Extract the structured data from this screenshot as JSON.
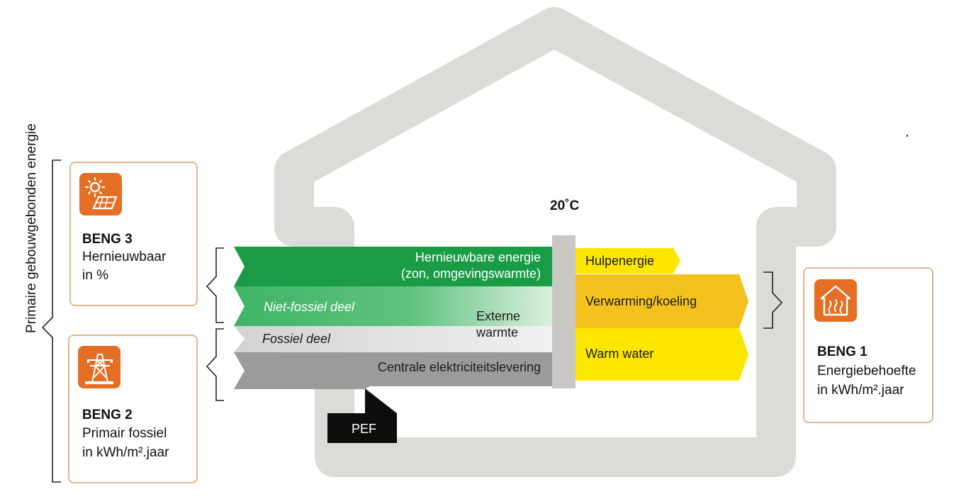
{
  "vertical_label": "Primaire gebouwgebonden energie",
  "temperature": "20˚C",
  "beng3": {
    "title": "BENG 3",
    "line1": "Hernieuwbaar",
    "line2": "in %",
    "icon": "solar-panel-icon"
  },
  "beng2": {
    "title": "BENG 2",
    "line1": "Primair fossiel",
    "line2": "in kWh/m².jaar",
    "icon": "power-pylon-icon"
  },
  "beng1": {
    "title": "BENG 1",
    "line1": "Energiebehoefte",
    "line2": "in kWh/m².jaar",
    "icon": "house-heating-icon"
  },
  "flows": {
    "renewable_line1": "Hernieuwbare energie",
    "renewable_line2": "(zon, omgevingswarmte)",
    "nonfossil": "Niet-fossiel deel",
    "external_line1": "Externe",
    "external_line2": "warmte",
    "fossil": "Fossiel deel",
    "central_electricity": "Centrale elektriciteitslevering",
    "pef": "PEF"
  },
  "outputs": {
    "aux": "Hulpenergie",
    "heating": "Verwarming/koeling",
    "hot_water": "Warm water"
  },
  "colors": {
    "house": "#dddbd7",
    "green_dark": "#1a9c47",
    "green_mid": "#3fb466",
    "grey_light": "#d9d9d9",
    "grey_dark": "#9b9b9b",
    "yellow": "#fce600",
    "yellow_orange": "#f4c21d",
    "orange": "#e46f24",
    "box_border": "#e0b58c"
  }
}
